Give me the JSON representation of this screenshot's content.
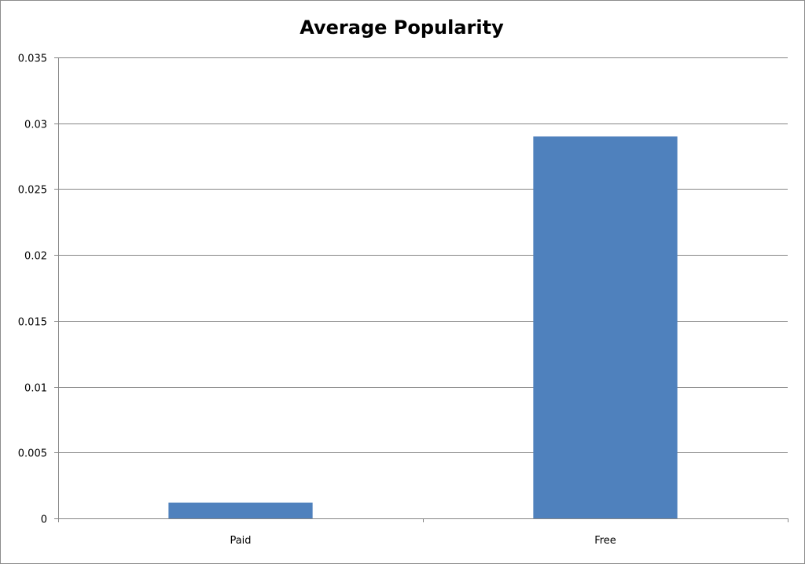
{
  "chart_data": {
    "type": "bar",
    "title": "Average Popularity",
    "xlabel": "",
    "ylabel": "",
    "categories": [
      "Paid",
      "Free"
    ],
    "series": [
      {
        "values": [
          0.0012,
          0.029
        ]
      }
    ],
    "ylim": [
      0,
      0.035
    ],
    "yticks": [
      0,
      0.005,
      0.01,
      0.015,
      0.02,
      0.025,
      0.03,
      0.035
    ],
    "ytick_labels": [
      "0",
      "0.005",
      "0.01",
      "0.015",
      "0.02",
      "0.025",
      "0.03",
      "0.035"
    ],
    "bar_color": "#4f81bd",
    "gridline_color": "#868686",
    "grid": true,
    "legend": "none"
  }
}
